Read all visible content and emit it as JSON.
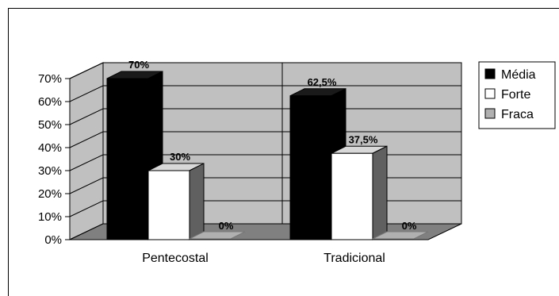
{
  "chart_data": {
    "type": "bar",
    "style": "3d-clustered-column",
    "title": "",
    "xlabel": "",
    "ylabel": "",
    "categories": [
      "Pentecostal",
      "Tradicional"
    ],
    "series": [
      {
        "name": "Média",
        "values": [
          70,
          62.5
        ],
        "labels": [
          "70%",
          "62,5%"
        ],
        "color": "#000000"
      },
      {
        "name": "Forte",
        "values": [
          30,
          37.5
        ],
        "labels": [
          "30%",
          "37,5%"
        ],
        "color": "#ffffff"
      },
      {
        "name": "Fraca",
        "values": [
          0,
          0
        ],
        "labels": [
          "0%",
          "0%"
        ],
        "color": "#b0b0b0"
      }
    ],
    "ylim": [
      0,
      70
    ],
    "yticks": [
      0,
      10,
      20,
      30,
      40,
      50,
      60,
      70
    ],
    "ytick_labels": [
      "0%",
      "10%",
      "20%",
      "30%",
      "40%",
      "50%",
      "60%",
      "70%"
    ],
    "grid": true,
    "legend": "right",
    "colors": {
      "wall": "#c0c0c0",
      "floor": "#808080",
      "side": "#606060",
      "top": "#d8d8d8"
    }
  }
}
